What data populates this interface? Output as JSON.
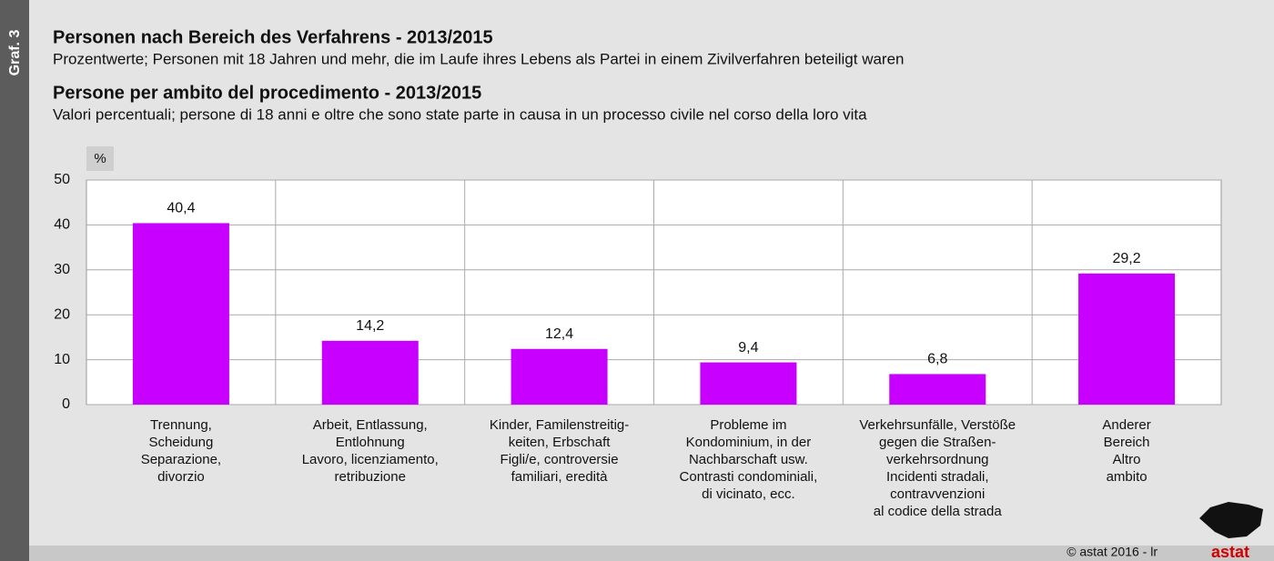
{
  "side_label": "Graf. 3",
  "chart_data": {
    "type": "bar",
    "title": "Personen nach Bereich des Verfahrens - 2013/2015",
    "subtitle": "Prozentwerte; Personen mit 18 Jahren und mehr, die im Laufe ihres Lebens als Partei in einem Zivilverfahren beteiligt waren",
    "title_it": "Persone per ambito del procedimento - 2013/2015",
    "subtitle_it": "Valori percentuali; persone di 18 anni e oltre che sono state parte in causa in un processo civile nel corso della loro vita",
    "y_unit": "%",
    "categories": [
      [
        "Trennung,",
        "Scheidung",
        "Separazione,",
        "divorzio"
      ],
      [
        "Arbeit, Entlassung,",
        "Entlohnung",
        "Lavoro, licenziamento,",
        "retribuzione"
      ],
      [
        "Kinder, Familenstreitig-",
        "keiten, Erbschaft",
        "Figli/e, controversie",
        "familiari, eredità"
      ],
      [
        "Probleme im",
        "Kondominium, in der",
        "Nachbarschaft usw.",
        "Contrasti condominiali,",
        "di vicinato, ecc."
      ],
      [
        "Verkehrsunfälle, Verstöße",
        "gegen die Straßen-",
        "verkehrsordnung",
        "Incidenti stradali,",
        "contravvenzioni",
        "al codice della strada"
      ],
      [
        "Anderer",
        "Bereich",
        "Altro",
        "ambito"
      ]
    ],
    "values": [
      40.4,
      14.2,
      12.4,
      9.4,
      6.8,
      29.2
    ],
    "value_labels": [
      "40,4",
      "14,2",
      "12,4",
      "9,4",
      "6,8",
      "29,2"
    ],
    "color": "#c700ff",
    "ylim": [
      0,
      50
    ],
    "yticks": [
      0,
      10,
      20,
      30,
      40,
      50
    ],
    "grid": true
  },
  "footer": "©  astat 2016 - lr",
  "logo": "astat"
}
